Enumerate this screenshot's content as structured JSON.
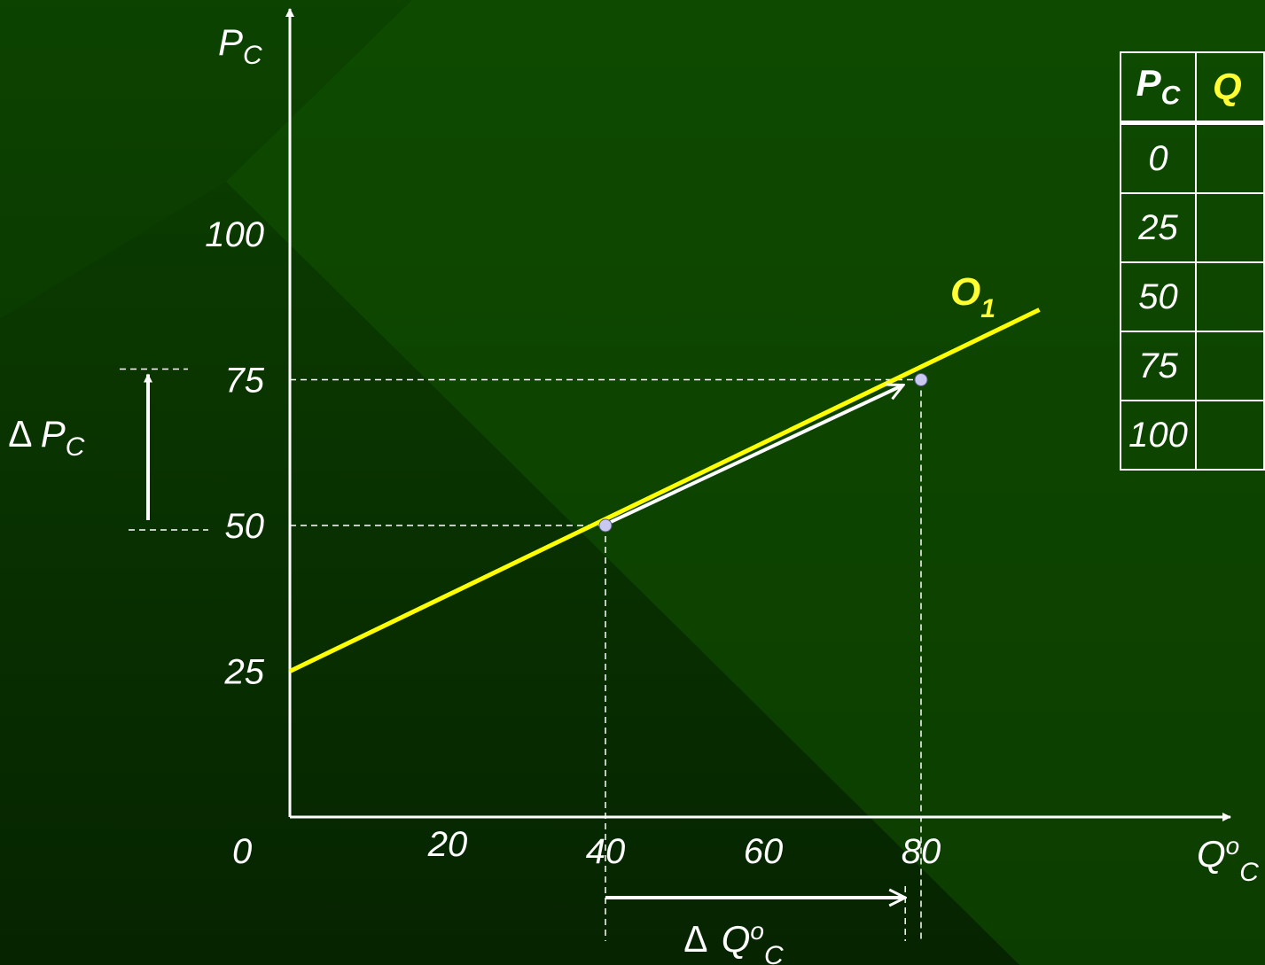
{
  "chart_data": {
    "type": "line",
    "y_axis_label": "P",
    "y_axis_label_sub": "C",
    "x_axis_label": "Q",
    "x_axis_label_sup": "o",
    "x_axis_label_sub": "C",
    "origin_label": "0",
    "x_ticks": [
      20,
      40,
      60,
      80
    ],
    "y_ticks": [
      25,
      50,
      75,
      100
    ],
    "xlim": [
      0,
      118
    ],
    "ylim": [
      0,
      130
    ],
    "series": [
      {
        "name": "O1",
        "label_main": "O",
        "label_sub": "1",
        "color": "#ffff00",
        "x": [
          0,
          95
        ],
        "y": [
          25,
          87
        ]
      }
    ],
    "points": [
      {
        "x": 40,
        "y": 50
      },
      {
        "x": 80,
        "y": 75
      }
    ],
    "delta_p": {
      "symbol": "∆",
      "label": "P",
      "sub": "C",
      "from": 50,
      "to": 75
    },
    "delta_q": {
      "symbol": "∆",
      "label": "Q",
      "sup": "o",
      "sub": "C",
      "from": 40,
      "to": 78
    }
  },
  "table": {
    "headers": [
      {
        "main": "P",
        "sub": "C"
      },
      {
        "main": "Q",
        "sub": ""
      }
    ],
    "rows": [
      [
        "0",
        ""
      ],
      [
        "25",
        ""
      ],
      [
        "50",
        ""
      ],
      [
        "75",
        ""
      ],
      [
        "100",
        ""
      ]
    ]
  },
  "colors": {
    "curve": "#ffff00",
    "axis": "#ffffff",
    "point": "#c8c8f0"
  }
}
